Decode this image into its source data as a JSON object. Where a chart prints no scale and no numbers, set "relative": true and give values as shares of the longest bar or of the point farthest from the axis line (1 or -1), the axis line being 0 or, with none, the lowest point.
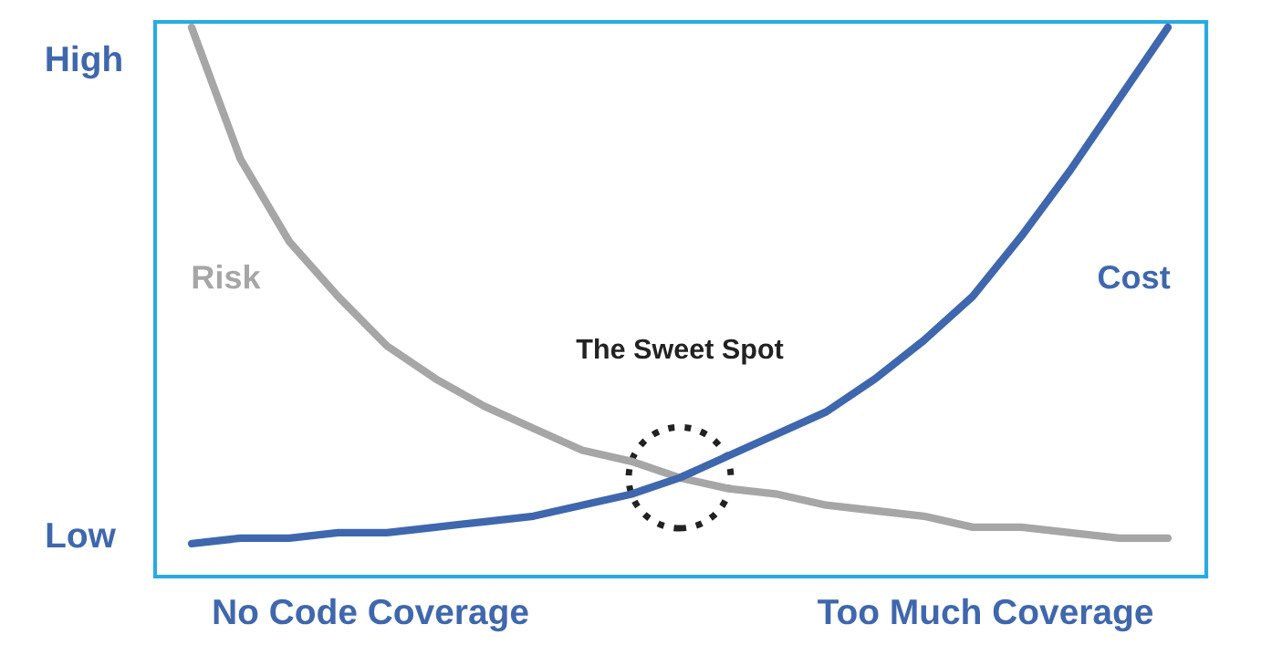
{
  "chart_data": {
    "type": "line",
    "relative": true,
    "categories": [
      null,
      null,
      null,
      null,
      null,
      null,
      null,
      null,
      null,
      null,
      null,
      null,
      null,
      null,
      null,
      null,
      null,
      null,
      null,
      null,
      null
    ],
    "series": [
      {
        "name": "Risk",
        "color": "#a6a6a6",
        "values": [
          1.0,
          0.76,
          0.61,
          0.51,
          0.42,
          0.36,
          0.31,
          0.27,
          0.23,
          0.21,
          0.18,
          0.16,
          0.15,
          0.13,
          0.12,
          0.11,
          0.09,
          0.09,
          0.08,
          0.07,
          0.07
        ]
      },
      {
        "name": "Cost",
        "color": "#3f67ad",
        "values": [
          0.06,
          0.07,
          0.07,
          0.08,
          0.08,
          0.09,
          0.1,
          0.11,
          0.13,
          0.15,
          0.18,
          0.22,
          0.26,
          0.3,
          0.36,
          0.43,
          0.51,
          0.62,
          0.74,
          0.87,
          1.0
        ]
      }
    ],
    "annotations": [
      "High",
      "Low",
      "No Code Coverage",
      "Too Much Coverage",
      "The Sweet Spot"
    ],
    "marker": "none",
    "line_style": "solid",
    "legend": false
  }
}
